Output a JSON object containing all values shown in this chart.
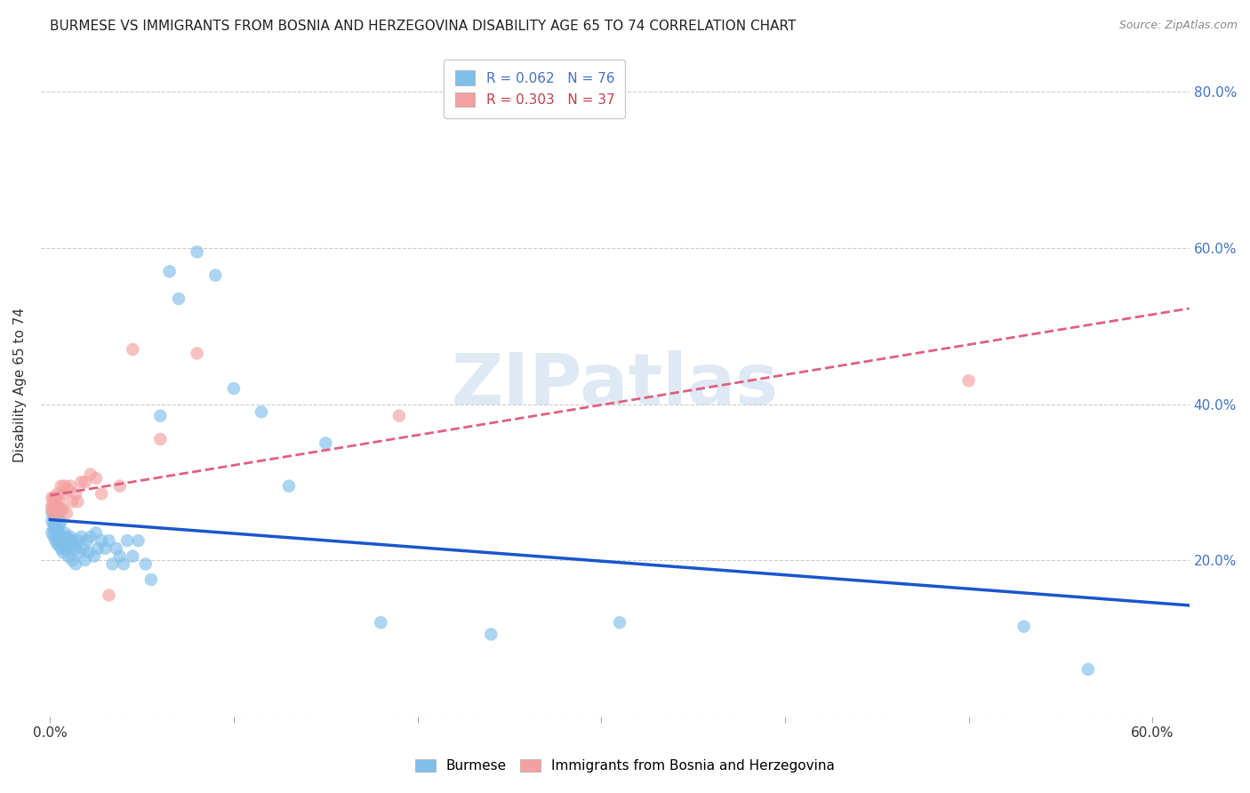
{
  "title": "BURMESE VS IMMIGRANTS FROM BOSNIA AND HERZEGOVINA DISABILITY AGE 65 TO 74 CORRELATION CHART",
  "source": "Source: ZipAtlas.com",
  "ylabel": "Disability Age 65 to 74",
  "xlim": [
    -0.005,
    0.62
  ],
  "ylim": [
    0.0,
    0.85
  ],
  "xtick_positions": [
    0.0,
    0.1,
    0.2,
    0.3,
    0.4,
    0.5,
    0.6
  ],
  "ytick_positions": [
    0.0,
    0.2,
    0.4,
    0.6,
    0.8
  ],
  "yticklabels_right": [
    "",
    "20.0%",
    "40.0%",
    "60.0%",
    "80.0%"
  ],
  "burmese_color": "#7fbfea",
  "bosnia_color": "#f4a0a0",
  "trendline_burmese_color": "#1a56cc",
  "trendline_bosnia_color": "#e06080",
  "R_burmese": 0.062,
  "N_burmese": 76,
  "R_bosnia": 0.303,
  "N_bosnia": 37,
  "watermark": "ZIPatlas",
  "burmese_x": [
    0.001,
    0.001,
    0.001,
    0.002,
    0.002,
    0.002,
    0.002,
    0.003,
    0.003,
    0.003,
    0.003,
    0.003,
    0.004,
    0.004,
    0.004,
    0.004,
    0.005,
    0.005,
    0.005,
    0.005,
    0.006,
    0.006,
    0.006,
    0.007,
    0.007,
    0.007,
    0.008,
    0.008,
    0.009,
    0.009,
    0.01,
    0.01,
    0.011,
    0.011,
    0.012,
    0.012,
    0.013,
    0.014,
    0.014,
    0.015,
    0.016,
    0.017,
    0.018,
    0.019,
    0.02,
    0.021,
    0.022,
    0.024,
    0.025,
    0.026,
    0.028,
    0.03,
    0.032,
    0.034,
    0.036,
    0.038,
    0.04,
    0.042,
    0.045,
    0.048,
    0.052,
    0.055,
    0.06,
    0.065,
    0.07,
    0.08,
    0.09,
    0.1,
    0.115,
    0.13,
    0.15,
    0.18,
    0.24,
    0.31,
    0.53,
    0.565
  ],
  "burmese_y": [
    0.26,
    0.25,
    0.235,
    0.245,
    0.24,
    0.23,
    0.26,
    0.255,
    0.245,
    0.25,
    0.24,
    0.225,
    0.235,
    0.255,
    0.23,
    0.22,
    0.245,
    0.235,
    0.22,
    0.23,
    0.225,
    0.215,
    0.25,
    0.225,
    0.215,
    0.21,
    0.235,
    0.22,
    0.23,
    0.215,
    0.225,
    0.205,
    0.23,
    0.215,
    0.2,
    0.225,
    0.22,
    0.195,
    0.215,
    0.225,
    0.21,
    0.23,
    0.215,
    0.2,
    0.225,
    0.21,
    0.23,
    0.205,
    0.235,
    0.215,
    0.225,
    0.215,
    0.225,
    0.195,
    0.215,
    0.205,
    0.195,
    0.225,
    0.205,
    0.225,
    0.195,
    0.175,
    0.385,
    0.57,
    0.535,
    0.595,
    0.565,
    0.42,
    0.39,
    0.295,
    0.35,
    0.12,
    0.105,
    0.12,
    0.115,
    0.06
  ],
  "bosnia_x": [
    0.001,
    0.001,
    0.001,
    0.002,
    0.002,
    0.002,
    0.003,
    0.003,
    0.003,
    0.004,
    0.004,
    0.004,
    0.005,
    0.005,
    0.006,
    0.006,
    0.007,
    0.007,
    0.008,
    0.009,
    0.01,
    0.011,
    0.012,
    0.014,
    0.015,
    0.017,
    0.019,
    0.022,
    0.025,
    0.028,
    0.032,
    0.038,
    0.045,
    0.06,
    0.08,
    0.19,
    0.5
  ],
  "bosnia_y": [
    0.28,
    0.265,
    0.27,
    0.28,
    0.26,
    0.27,
    0.265,
    0.28,
    0.27,
    0.26,
    0.27,
    0.285,
    0.265,
    0.275,
    0.265,
    0.295,
    0.265,
    0.285,
    0.295,
    0.26,
    0.29,
    0.295,
    0.275,
    0.285,
    0.275,
    0.3,
    0.3,
    0.31,
    0.305,
    0.285,
    0.155,
    0.295,
    0.47,
    0.355,
    0.465,
    0.385,
    0.43
  ]
}
